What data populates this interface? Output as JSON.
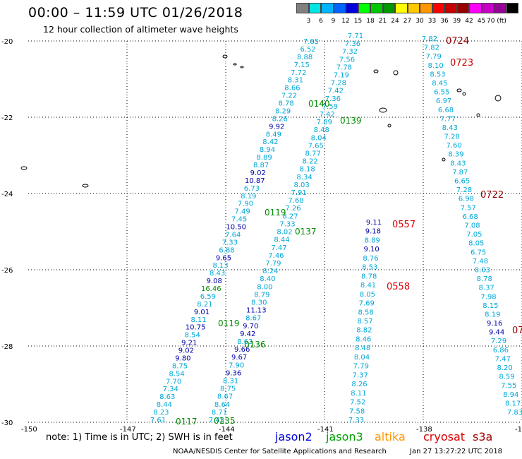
{
  "title": "00:00 – 11:59 UTC 01/26/2018",
  "subtitle": "12 hour collection of altimeter wave heights",
  "colorbar": {
    "units": "(ft)",
    "bins": [
      {
        "color": "#808080",
        "label": ""
      },
      {
        "color": "#00e4e4",
        "label": "3"
      },
      {
        "color": "#00b4ff",
        "label": "6"
      },
      {
        "color": "#0064ff",
        "label": "9"
      },
      {
        "color": "#0000dc",
        "label": "12"
      },
      {
        "color": "#00ff00",
        "label": "15"
      },
      {
        "color": "#00c800",
        "label": "18"
      },
      {
        "color": "#009600",
        "label": "21"
      },
      {
        "color": "#ffff00",
        "label": "24"
      },
      {
        "color": "#ffc800",
        "label": "27"
      },
      {
        "color": "#ff9600",
        "label": "30"
      },
      {
        "color": "#ff0000",
        "label": "33"
      },
      {
        "color": "#c80000",
        "label": "36"
      },
      {
        "color": "#960000",
        "label": "39"
      },
      {
        "color": "#ff00ff",
        "label": "42"
      },
      {
        "color": "#c800c8",
        "label": "45"
      },
      {
        "color": "#960096",
        "label": "70"
      },
      {
        "color": "#000000",
        "label": ""
      }
    ]
  },
  "axes": {
    "lat_ticks": [
      "-20",
      "-22",
      "-24",
      "-26",
      "-28",
      "-30"
    ],
    "lon_ticks": [
      "-150",
      "-147",
      "-144",
      "-141",
      "-138",
      "-135"
    ]
  },
  "colors": {
    "low": "#00a8d8",
    "mid": "#0000aa",
    "green": "#008c00",
    "jason2": "#0000dd",
    "jason3": "#00a000",
    "altika": "#ff9600",
    "cryosat": "#dd0000",
    "s3a": "#a00000",
    "time_dark": "#960000",
    "time_red": "#dd0000"
  },
  "tracks": [
    {
      "id": "track-a",
      "values": [
        "7.85",
        "6.52",
        "8.88",
        "7.15",
        "7.72",
        "8.31",
        "8.66",
        "7.22",
        "8.78",
        "8.29",
        "8.26",
        "9.92",
        "8.49",
        "8.42",
        "8.94",
        "8.89",
        "8.87",
        "9.02",
        "10.87",
        "6.73",
        "8.19",
        "7.90",
        "7.49",
        "7.45",
        "10.50",
        "7.64",
        "7.33",
        "6.88",
        "9.65",
        "8.13",
        "8.43",
        "9.08",
        "16.46",
        "6.59",
        "8.21",
        "9.01",
        "8.11",
        "10.75",
        "8.54",
        "9.21",
        "9.02",
        "9.80",
        "8.75",
        "8.54",
        "7.70",
        "7.34",
        "8.63",
        "8.44",
        "8.23",
        "7.61"
      ]
    },
    {
      "id": "track-b",
      "values": [
        "7.71",
        "7.36",
        "7.32",
        "7.56",
        "7.78",
        "7.19",
        "7.28",
        "7.42",
        "7.36",
        "7.59",
        "7.42",
        "7.89",
        "8.48",
        "8.04",
        "7.65",
        "8.77",
        "8.22",
        "8.18",
        "8.34",
        "8.03",
        "7.91",
        "7.68",
        "7.26",
        "8.27",
        "7.33",
        "8.02",
        "8.44",
        "7.47",
        "7.46",
        "7.79",
        "8.24",
        "8.40",
        "8.00",
        "8.79",
        "8.30",
        "11.13",
        "8.67",
        "9.70",
        "9.42",
        "8.63",
        "9.66",
        "9.67",
        "7.90",
        "9.36",
        "8.31",
        "8.75",
        "8.67",
        "8.64",
        "8.71",
        "7.43"
      ]
    },
    {
      "id": "track-c",
      "values": [
        "9.11",
        "9.18",
        "8.89",
        "9.10",
        "8.76",
        "8.53",
        "8.78",
        "8.41",
        "8.05",
        "7.69",
        "8.58",
        "8.57",
        "8.82",
        "8.46",
        "8.48",
        "8.04",
        "7.79",
        "7.37",
        "8.26",
        "8.11",
        "7.52",
        "7.58",
        "7.33"
      ]
    },
    {
      "id": "track-d",
      "values": [
        "7.82",
        "7.82",
        "7.79",
        "8.10",
        "8.53",
        "8.45",
        "6.55",
        "6.97",
        "6.68",
        "7.77",
        "8.43",
        "7.28",
        "7.60",
        "8.39",
        "8.43",
        "7.87",
        "6.65",
        "7.28",
        "6.98",
        "7.57",
        "6.68",
        "7.08",
        "7.05",
        "8.05",
        "6.75",
        "7.48",
        "8.03",
        "8.78",
        "8.37",
        "7.98",
        "8.15",
        "8.19",
        "9.16",
        "9.44",
        "7.29",
        "6.86",
        "7.47",
        "8.20",
        "8.59",
        "7.55",
        "8.94",
        "8.17",
        "7.83"
      ]
    }
  ],
  "time_labels": [
    {
      "text": "0724",
      "color": "#960000"
    },
    {
      "text": "0723",
      "color": "#c80000"
    },
    {
      "text": "0722",
      "color": "#960000"
    },
    {
      "text": "0557",
      "color": "#dd0000"
    },
    {
      "text": "0558",
      "color": "#dd0000"
    },
    {
      "text": "07",
      "color": "#960000"
    },
    {
      "text": "0140",
      "color": "#008c00"
    },
    {
      "text": "0139",
      "color": "#008c00"
    },
    {
      "text": "0119",
      "color": "#008c00"
    },
    {
      "text": "0137",
      "color": "#008c00"
    },
    {
      "text": "0119",
      "color": "#008c00"
    },
    {
      "text": "0136",
      "color": "#008c00"
    },
    {
      "text": "0117",
      "color": "#008c00"
    },
    {
      "text": "0135",
      "color": "#008c00"
    }
  ],
  "note": "note:  1) Time is in UTC;  2) SWH is in feet",
  "legend": [
    {
      "text": "jason2",
      "color": "#0000dd"
    },
    {
      "text": "jason3",
      "color": "#00a000"
    },
    {
      "text": "altika",
      "color": "#ff9600"
    },
    {
      "text": "cryosat",
      "color": "#dd0000"
    },
    {
      "text": "s3a",
      "color": "#a00000"
    }
  ],
  "footer": "NOAA/NESDIS Center for Satellite Applications and Research",
  "footer_date": "Jan 27 13:27:22 UTC 2018"
}
